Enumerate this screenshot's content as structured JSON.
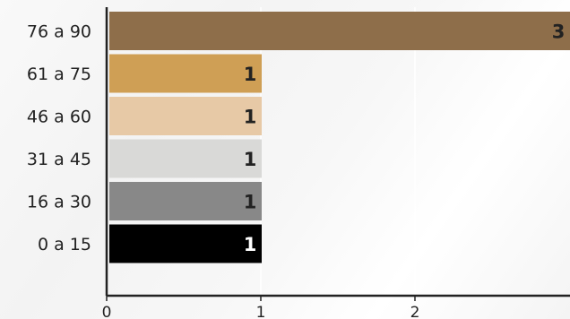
{
  "chart_data": {
    "type": "bar",
    "orientation": "horizontal",
    "categories": [
      "76 a 90",
      "61 a 75",
      "46 a 60",
      "31 a 45",
      "16 a 30",
      "0 a 15"
    ],
    "values": [
      3,
      1,
      1,
      1,
      1,
      1
    ],
    "colors": [
      "#8e6e4a",
      "#cf9f55",
      "#e7c9a6",
      "#d9d9d7",
      "#888888",
      "#000000"
    ],
    "label_colors": [
      "#222222",
      "#222222",
      "#222222",
      "#222222",
      "#222222",
      "#ffffff"
    ],
    "x_ticks": [
      0,
      1,
      2
    ],
    "xlim": [
      0,
      3
    ],
    "grid": true,
    "title": "",
    "xlabel": "",
    "ylabel": ""
  }
}
